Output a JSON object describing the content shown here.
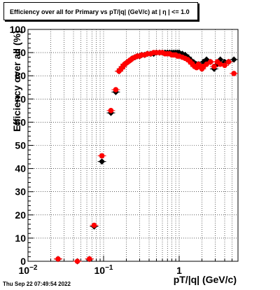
{
  "chart_data": {
    "type": "scatter",
    "title": "Efficiency over all for Primary vs pT/|q| (GeV/c) at |  η | <= 1.0",
    "xlabel": "pT/|q| (GeV/c)",
    "ylabel": "Efficiency over all (%)",
    "xscale": "log",
    "xlim": [
      0.01,
      6.0
    ],
    "ylim": [
      0,
      100
    ],
    "y_ticks": [
      "0",
      "10",
      "20",
      "30",
      "40",
      "50",
      "60",
      "70",
      "80",
      "90",
      "100"
    ],
    "x_ticks": [
      {
        "base": "10",
        "exp": "−2",
        "value": 0.01
      },
      {
        "base": "10",
        "exp": "−1",
        "value": 0.1
      },
      {
        "base": "1",
        "exp": "",
        "value": 1
      }
    ],
    "grid": true,
    "series": [
      {
        "color": "#000000",
        "marker": "diamond",
        "points": [
          [
            0.025,
            1
          ],
          [
            0.045,
            0
          ],
          [
            0.065,
            1
          ],
          [
            0.075,
            15
          ],
          [
            0.095,
            43
          ],
          [
            0.125,
            64
          ],
          [
            0.145,
            73
          ],
          [
            0.16,
            82
          ],
          [
            0.17,
            83
          ],
          [
            0.18,
            84
          ],
          [
            0.19,
            85
          ],
          [
            0.2,
            85.5
          ],
          [
            0.21,
            86
          ],
          [
            0.22,
            86.5
          ],
          [
            0.23,
            87
          ],
          [
            0.24,
            87.5
          ],
          [
            0.26,
            88
          ],
          [
            0.28,
            88.5
          ],
          [
            0.3,
            88.5
          ],
          [
            0.32,
            89
          ],
          [
            0.35,
            89
          ],
          [
            0.38,
            89.5
          ],
          [
            0.42,
            89.5
          ],
          [
            0.46,
            89.5
          ],
          [
            0.5,
            90
          ],
          [
            0.55,
            90
          ],
          [
            0.6,
            90
          ],
          [
            0.65,
            90
          ],
          [
            0.7,
            90
          ],
          [
            0.75,
            90
          ],
          [
            0.8,
            90
          ],
          [
            0.85,
            90
          ],
          [
            0.9,
            90
          ],
          [
            0.95,
            90
          ],
          [
            1.0,
            90
          ],
          [
            1.1,
            89.5
          ],
          [
            1.2,
            89
          ],
          [
            1.3,
            88
          ],
          [
            1.4,
            87
          ],
          [
            1.5,
            86
          ],
          [
            1.6,
            85.5
          ],
          [
            1.7,
            85
          ],
          [
            1.8,
            85
          ],
          [
            1.9,
            84.5
          ],
          [
            2.0,
            84
          ],
          [
            2.1,
            86
          ],
          [
            2.3,
            87
          ],
          [
            2.6,
            86
          ],
          [
            2.9,
            83
          ],
          [
            3.2,
            85
          ],
          [
            3.5,
            87
          ],
          [
            4.0,
            86
          ],
          [
            4.5,
            86
          ],
          [
            5.3,
            87
          ]
        ]
      },
      {
        "color": "#ff0000",
        "marker": "circle",
        "points": [
          [
            0.025,
            1
          ],
          [
            0.045,
            0
          ],
          [
            0.065,
            1
          ],
          [
            0.075,
            15.5
          ],
          [
            0.095,
            45.5
          ],
          [
            0.125,
            65
          ],
          [
            0.145,
            74
          ],
          [
            0.16,
            82
          ],
          [
            0.17,
            83
          ],
          [
            0.18,
            84
          ],
          [
            0.19,
            85
          ],
          [
            0.2,
            85.5
          ],
          [
            0.21,
            86
          ],
          [
            0.22,
            86.5
          ],
          [
            0.23,
            87
          ],
          [
            0.24,
            87.5
          ],
          [
            0.26,
            88
          ],
          [
            0.28,
            88.5
          ],
          [
            0.3,
            88.5
          ],
          [
            0.32,
            89
          ],
          [
            0.35,
            89
          ],
          [
            0.38,
            89.5
          ],
          [
            0.42,
            89.5
          ],
          [
            0.46,
            90
          ],
          [
            0.5,
            90
          ],
          [
            0.55,
            90
          ],
          [
            0.6,
            90
          ],
          [
            0.65,
            89.5
          ],
          [
            0.7,
            89.5
          ],
          [
            0.75,
            89.5
          ],
          [
            0.8,
            89
          ],
          [
            0.85,
            89
          ],
          [
            0.9,
            89
          ],
          [
            0.95,
            88.5
          ],
          [
            1.0,
            88.5
          ],
          [
            1.1,
            88
          ],
          [
            1.2,
            87.5
          ],
          [
            1.3,
            87
          ],
          [
            1.4,
            86
          ],
          [
            1.5,
            85
          ],
          [
            1.6,
            84
          ],
          [
            1.7,
            83.5
          ],
          [
            1.8,
            85
          ],
          [
            1.9,
            84
          ],
          [
            2.0,
            83
          ],
          [
            2.1,
            84
          ],
          [
            2.3,
            85
          ],
          [
            2.6,
            86
          ],
          [
            2.9,
            84
          ],
          [
            3.2,
            86
          ],
          [
            3.5,
            85
          ],
          [
            4.0,
            84.5
          ],
          [
            4.5,
            86
          ],
          [
            5.3,
            81
          ]
        ]
      }
    ]
  },
  "footer": {
    "timestamp": "Thu Sep 22 07:49:54 2022"
  }
}
